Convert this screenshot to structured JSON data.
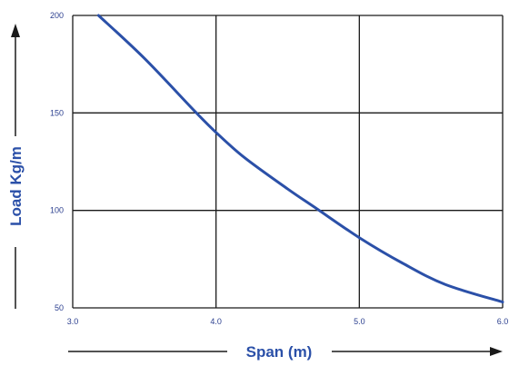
{
  "chart_data": {
    "type": "line",
    "title": "",
    "xlabel": "Span (m)",
    "ylabel": "Load Kg/m",
    "xlim": [
      3.0,
      6.0
    ],
    "ylim": [
      50,
      200
    ],
    "x_ticks": [
      "3.0",
      "4.0",
      "5.0",
      "6.0"
    ],
    "y_ticks": [
      "200",
      "150",
      "100",
      "50"
    ],
    "x_tick_values": [
      3.0,
      4.0,
      5.0,
      6.0
    ],
    "y_tick_values": [
      200,
      150,
      100,
      50
    ],
    "grid": true,
    "series": [
      {
        "color": "#2b50a8",
        "x": [
          3.18,
          3.5,
          3.85,
          4.0,
          4.2,
          4.5,
          4.7,
          5.0,
          5.3,
          5.6,
          6.0
        ],
        "y": [
          200,
          178,
          151,
          140,
          127,
          111,
          101,
          86,
          73,
          62,
          53
        ]
      }
    ]
  }
}
